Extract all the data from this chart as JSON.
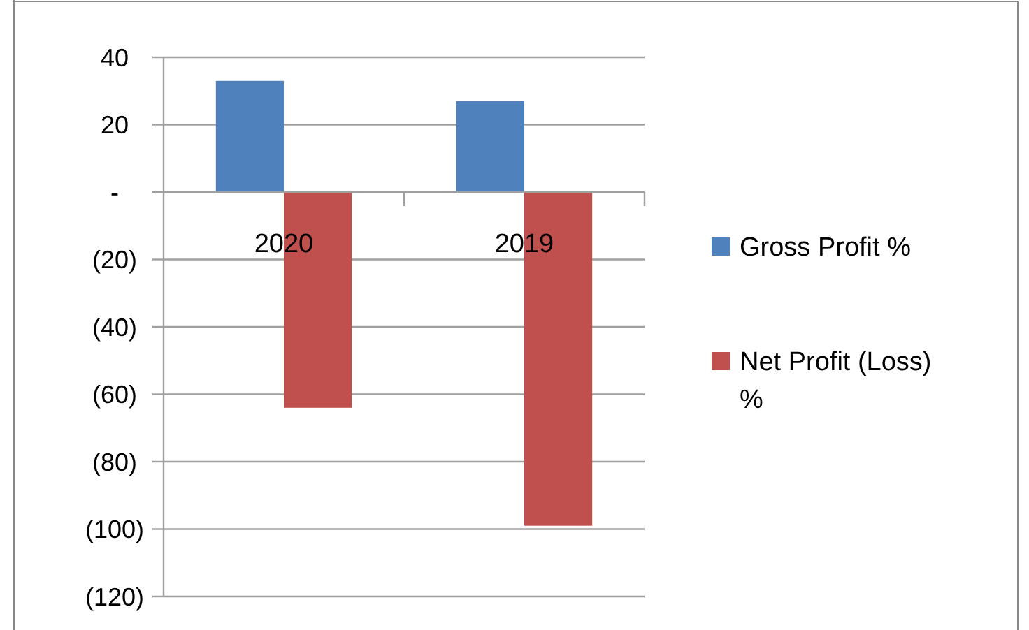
{
  "chart_data": {
    "type": "bar",
    "categories": [
      "2020",
      "2019"
    ],
    "series": [
      {
        "name": "Gross Profit %",
        "color": "#4f81bd",
        "values": [
          33,
          27
        ]
      },
      {
        "name": "Net Profit (Loss) %",
        "color": "#c0504d",
        "values": [
          -64,
          -99
        ]
      }
    ],
    "ylim": [
      -120,
      40
    ],
    "yticks": [
      40,
      20,
      {
        "value": 0,
        "label": "-"
      },
      {
        "value": -20,
        "label": "(20)"
      },
      {
        "value": -40,
        "label": "(40)"
      },
      {
        "value": -60,
        "label": "(60)"
      },
      {
        "value": -80,
        "label": "(80)"
      },
      {
        "value": -100,
        "label": "(100)"
      },
      {
        "value": -120,
        "label": "(120)"
      }
    ],
    "grid": "y",
    "legend": "right"
  }
}
